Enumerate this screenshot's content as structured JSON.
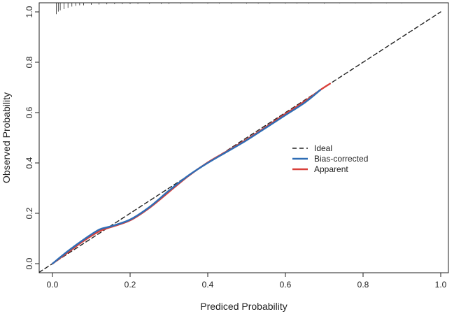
{
  "chart_data": {
    "type": "line",
    "xlabel": "Prediced Probability",
    "ylabel": "Observed Probability",
    "xlim": [
      -0.05,
      1.0
    ],
    "ylim": [
      -0.03,
      1.03
    ],
    "x_ticks": [
      "0.0",
      "0.2",
      "0.4",
      "0.6",
      "0.8",
      "1.0"
    ],
    "y_ticks": [
      "0.0",
      "0.2",
      "0.4",
      "0.6",
      "0.8",
      "1.0"
    ],
    "grid": false,
    "legend_position": "center-right",
    "series": [
      {
        "name": "Ideal",
        "color": "#222222",
        "style": "dashed",
        "x": [
          -0.05,
          1.0
        ],
        "y": [
          -0.05,
          1.0
        ]
      },
      {
        "name": "Bias-corrected",
        "color": "#2f6db5",
        "style": "solid",
        "x": [
          0.0,
          0.04,
          0.08,
          0.12,
          0.15,
          0.2,
          0.25,
          0.3,
          0.35,
          0.4,
          0.45,
          0.5,
          0.55,
          0.6,
          0.65,
          0.69
        ],
        "y": [
          0.0,
          0.05,
          0.095,
          0.135,
          0.148,
          0.175,
          0.225,
          0.29,
          0.35,
          0.4,
          0.445,
          0.49,
          0.54,
          0.59,
          0.64,
          0.69
        ]
      },
      {
        "name": "Apparent",
        "color": "#d9403a",
        "style": "solid",
        "x": [
          0.0,
          0.04,
          0.08,
          0.12,
          0.15,
          0.2,
          0.25,
          0.3,
          0.35,
          0.4,
          0.45,
          0.5,
          0.55,
          0.6,
          0.65,
          0.69,
          0.715
        ],
        "y": [
          0.0,
          0.045,
          0.09,
          0.128,
          0.145,
          0.172,
          0.222,
          0.285,
          0.348,
          0.402,
          0.447,
          0.493,
          0.543,
          0.595,
          0.645,
          0.69,
          0.715
        ]
      }
    ],
    "rug_top_x": [
      0.01,
      0.015,
      0.02,
      0.03,
      0.04,
      0.05,
      0.06,
      0.07,
      0.08,
      0.1,
      0.12,
      0.14,
      0.16,
      0.18,
      0.2,
      0.22,
      0.25,
      0.28,
      0.3,
      0.33,
      0.36,
      0.4,
      0.43,
      0.46,
      0.5,
      0.53,
      0.56,
      0.6,
      0.63,
      0.66,
      0.7,
      0.74,
      0.78,
      0.82,
      0.86,
      0.9
    ],
    "rug_top_len": [
      0.045,
      0.035,
      0.03,
      0.025,
      0.02,
      0.015,
      0.012,
      0.01,
      0.01,
      0.008,
      0.007,
      0.006,
      0.005,
      0.005,
      0.005,
      0.004,
      0.004,
      0.004,
      0.004,
      0.003,
      0.003,
      0.003,
      0.003,
      0.003,
      0.003,
      0.003,
      0.003,
      0.003,
      0.003,
      0.003,
      0.003,
      0.002,
      0.002,
      0.002,
      0.002,
      0.002
    ]
  }
}
